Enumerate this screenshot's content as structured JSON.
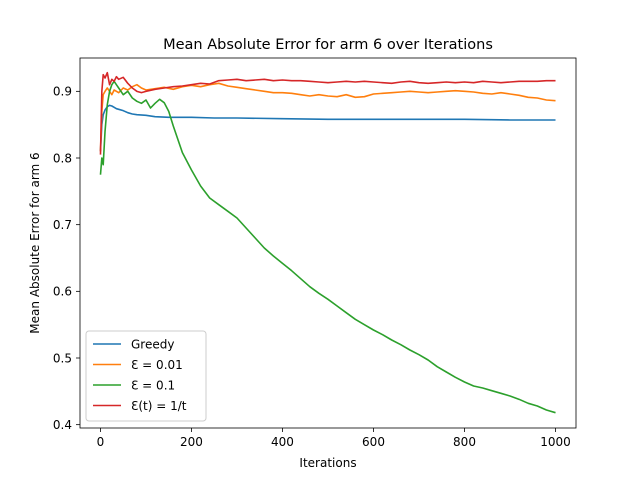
{
  "chart_data": {
    "type": "line",
    "title": "Mean Absolute Error for arm 6 over Iterations",
    "xlabel": "Iterations",
    "ylabel": "Mean Absolute Error for arm 6",
    "xlim": [
      -45,
      1045
    ],
    "ylim": [
      0.395,
      0.95
    ],
    "xticks": [
      0,
      200,
      400,
      600,
      800,
      1000
    ],
    "yticks": [
      0.4,
      0.5,
      0.6,
      0.7,
      0.8,
      0.9
    ],
    "xtick_labels": [
      "0",
      "200",
      "400",
      "600",
      "800",
      "1000"
    ],
    "ytick_labels": [
      "0.4",
      "0.5",
      "0.6",
      "0.7",
      "0.8",
      "0.9"
    ],
    "legend_position": "lower-left",
    "grid": false,
    "series": [
      {
        "name": "Greedy",
        "color": "#1f77b4",
        "x": [
          0,
          3,
          6,
          10,
          15,
          20,
          25,
          30,
          35,
          40,
          50,
          60,
          70,
          80,
          100,
          120,
          150,
          200,
          250,
          300,
          400,
          500,
          600,
          700,
          800,
          900,
          1000
        ],
        "y": [
          0.81,
          0.85,
          0.865,
          0.872,
          0.877,
          0.879,
          0.878,
          0.876,
          0.874,
          0.873,
          0.871,
          0.868,
          0.866,
          0.865,
          0.864,
          0.862,
          0.861,
          0.861,
          0.86,
          0.86,
          0.859,
          0.858,
          0.858,
          0.858,
          0.858,
          0.857,
          0.857
        ]
      },
      {
        "name": "Ɛ = 0.01",
        "color": "#ff7f0e",
        "x": [
          0,
          3,
          6,
          10,
          15,
          20,
          25,
          30,
          35,
          40,
          50,
          60,
          70,
          80,
          90,
          100,
          120,
          140,
          160,
          180,
          200,
          220,
          240,
          260,
          280,
          300,
          320,
          340,
          360,
          380,
          400,
          420,
          440,
          460,
          480,
          500,
          520,
          540,
          560,
          580,
          600,
          620,
          640,
          660,
          680,
          700,
          720,
          740,
          760,
          780,
          800,
          820,
          840,
          860,
          880,
          900,
          920,
          940,
          960,
          980,
          1000
        ],
        "y": [
          0.81,
          0.87,
          0.895,
          0.9,
          0.905,
          0.9,
          0.895,
          0.902,
          0.9,
          0.898,
          0.905,
          0.902,
          0.907,
          0.91,
          0.905,
          0.902,
          0.904,
          0.906,
          0.903,
          0.907,
          0.909,
          0.907,
          0.91,
          0.912,
          0.908,
          0.906,
          0.904,
          0.902,
          0.9,
          0.898,
          0.898,
          0.897,
          0.895,
          0.893,
          0.895,
          0.893,
          0.892,
          0.895,
          0.891,
          0.892,
          0.896,
          0.897,
          0.898,
          0.899,
          0.9,
          0.899,
          0.898,
          0.899,
          0.9,
          0.901,
          0.9,
          0.899,
          0.897,
          0.896,
          0.898,
          0.896,
          0.894,
          0.891,
          0.89,
          0.887,
          0.886
        ]
      },
      {
        "name": "Ɛ = 0.1",
        "color": "#2ca02c",
        "x": [
          0,
          3,
          6,
          10,
          15,
          20,
          25,
          30,
          35,
          40,
          45,
          50,
          60,
          70,
          80,
          90,
          100,
          110,
          120,
          130,
          140,
          150,
          160,
          180,
          200,
          220,
          240,
          260,
          280,
          300,
          320,
          340,
          360,
          380,
          400,
          420,
          440,
          460,
          480,
          500,
          520,
          540,
          560,
          580,
          600,
          620,
          640,
          660,
          680,
          700,
          720,
          740,
          760,
          780,
          800,
          820,
          840,
          860,
          880,
          900,
          920,
          940,
          960,
          980,
          1000
        ],
        "y": [
          0.775,
          0.8,
          0.79,
          0.84,
          0.88,
          0.9,
          0.91,
          0.915,
          0.91,
          0.905,
          0.9,
          0.895,
          0.9,
          0.89,
          0.885,
          0.882,
          0.887,
          0.875,
          0.882,
          0.888,
          0.883,
          0.87,
          0.848,
          0.808,
          0.782,
          0.758,
          0.74,
          0.73,
          0.72,
          0.71,
          0.695,
          0.68,
          0.665,
          0.653,
          0.642,
          0.631,
          0.619,
          0.607,
          0.597,
          0.588,
          0.578,
          0.568,
          0.558,
          0.55,
          0.542,
          0.535,
          0.527,
          0.52,
          0.512,
          0.505,
          0.497,
          0.487,
          0.479,
          0.471,
          0.464,
          0.458,
          0.455,
          0.451,
          0.447,
          0.443,
          0.438,
          0.432,
          0.428,
          0.422,
          0.418
        ]
      },
      {
        "name": "Ɛ(t) = 1/t",
        "color": "#d62728",
        "x": [
          0,
          3,
          6,
          10,
          15,
          20,
          25,
          30,
          35,
          40,
          50,
          60,
          70,
          80,
          90,
          100,
          120,
          140,
          160,
          180,
          200,
          220,
          240,
          260,
          280,
          300,
          320,
          340,
          360,
          380,
          400,
          420,
          440,
          460,
          480,
          500,
          520,
          540,
          560,
          580,
          600,
          620,
          640,
          660,
          680,
          700,
          720,
          740,
          760,
          780,
          800,
          820,
          840,
          860,
          880,
          900,
          920,
          940,
          960,
          980,
          1000
        ],
        "y": [
          0.805,
          0.9,
          0.925,
          0.92,
          0.928,
          0.91,
          0.918,
          0.915,
          0.922,
          0.918,
          0.921,
          0.912,
          0.905,
          0.9,
          0.898,
          0.9,
          0.903,
          0.905,
          0.907,
          0.908,
          0.91,
          0.912,
          0.911,
          0.916,
          0.917,
          0.918,
          0.916,
          0.917,
          0.918,
          0.916,
          0.917,
          0.916,
          0.916,
          0.915,
          0.914,
          0.913,
          0.914,
          0.915,
          0.914,
          0.915,
          0.914,
          0.913,
          0.912,
          0.914,
          0.915,
          0.913,
          0.912,
          0.913,
          0.914,
          0.913,
          0.914,
          0.913,
          0.915,
          0.914,
          0.913,
          0.914,
          0.915,
          0.915,
          0.915,
          0.916,
          0.916
        ]
      }
    ]
  }
}
